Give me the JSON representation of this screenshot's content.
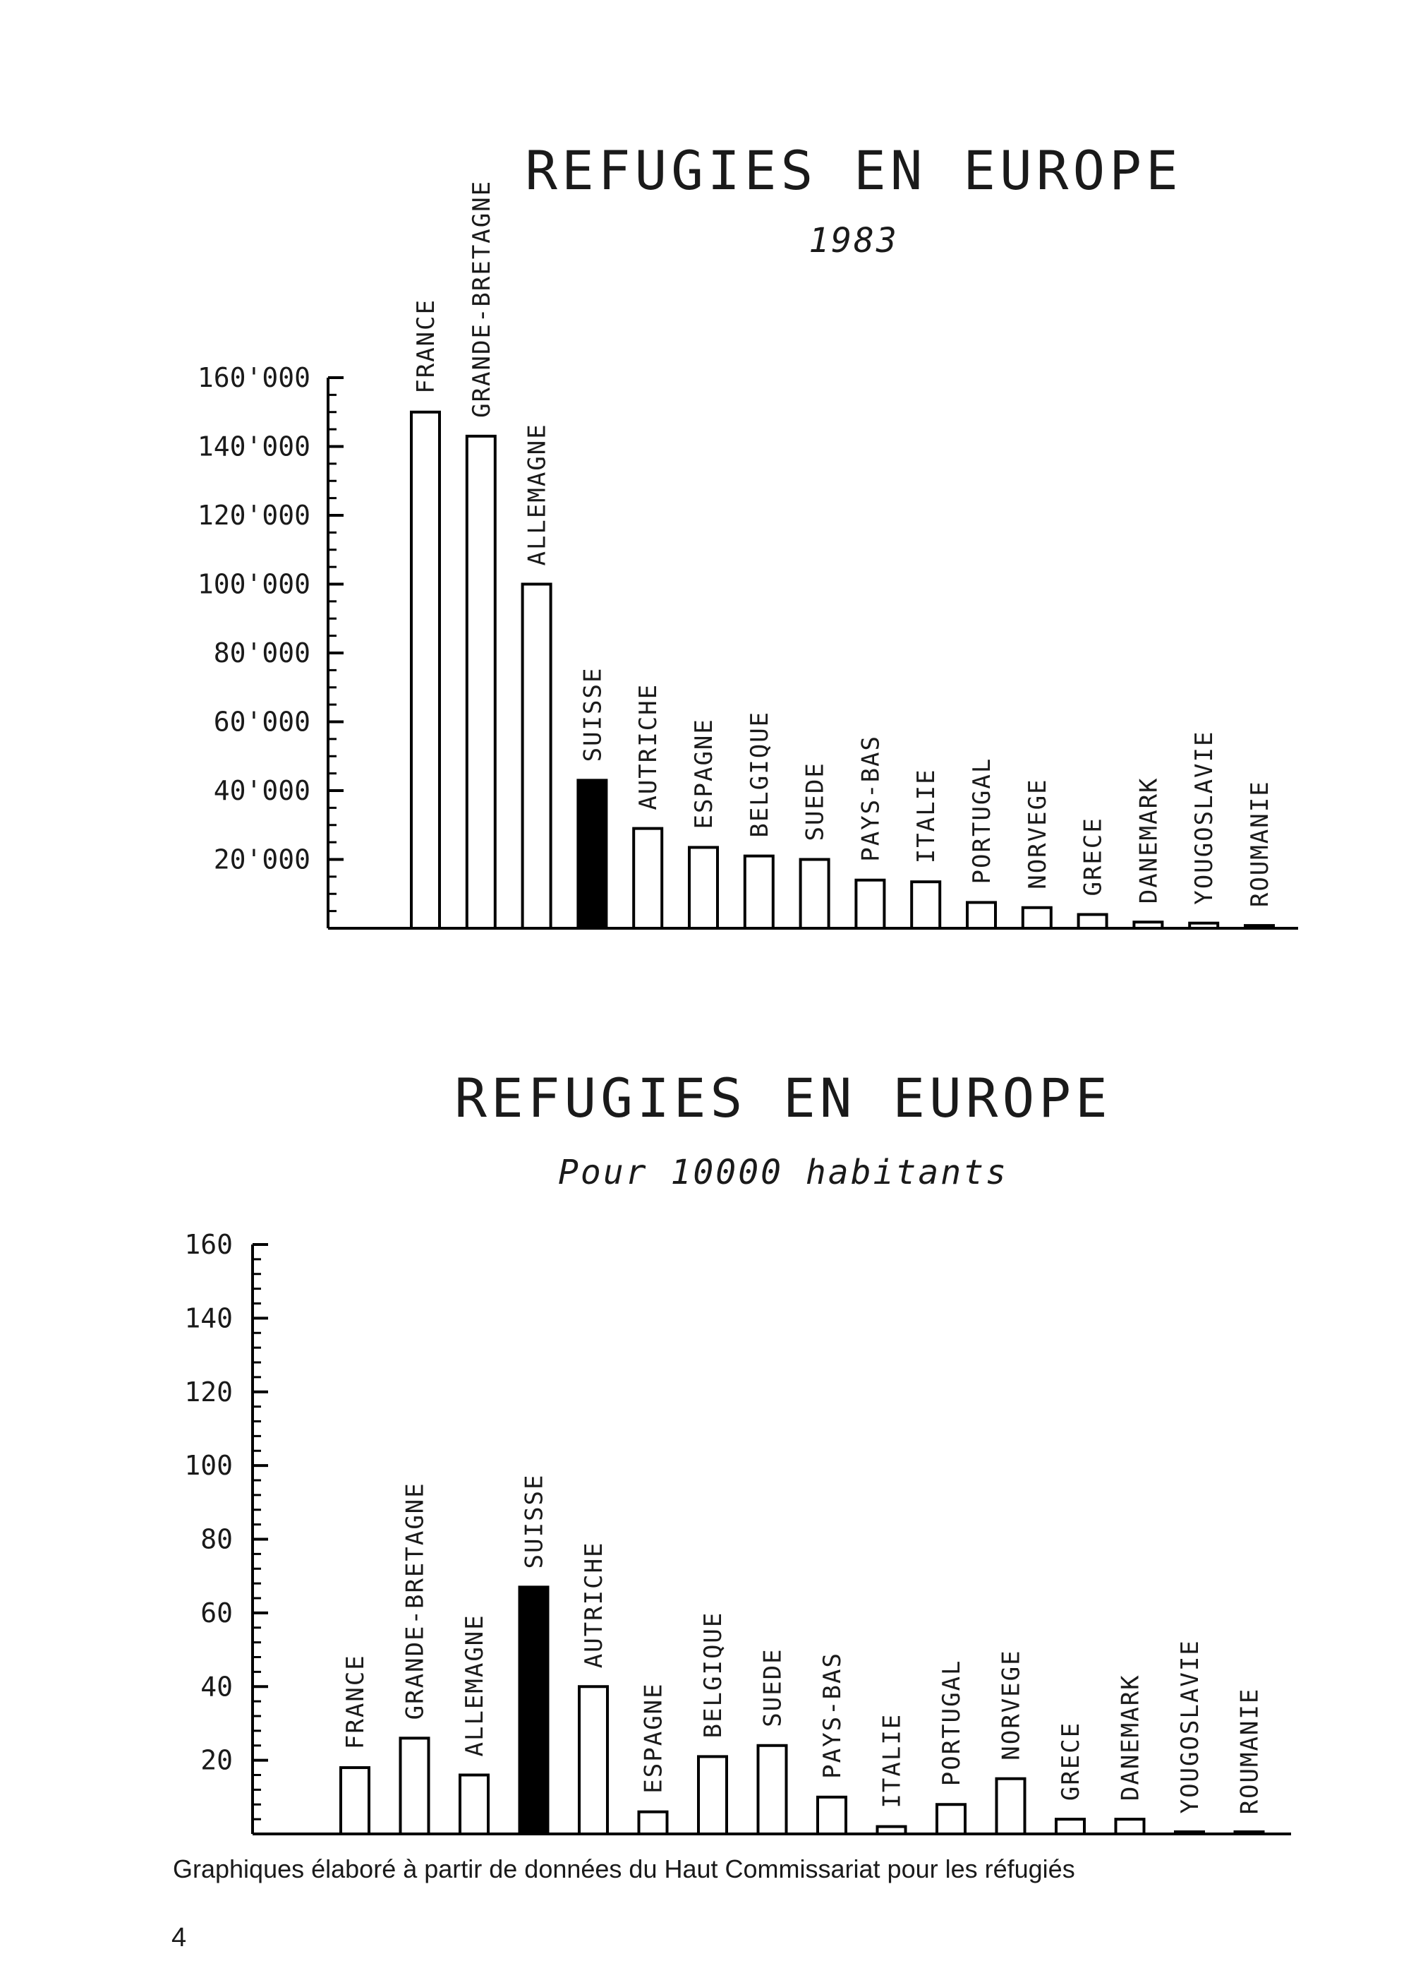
{
  "chart_data": [
    {
      "type": "bar",
      "title": "REFUGIES EN EUROPE",
      "subtitle": "1983",
      "xlabel": "",
      "ylabel": "",
      "ylim": [
        0,
        160000
      ],
      "yticks": [
        20000,
        40000,
        60000,
        80000,
        100000,
        120000,
        140000,
        160000
      ],
      "ytick_labels": [
        "20'000",
        "40'000",
        "60'000",
        "80'000",
        "100'000",
        "120'000",
        "140'000",
        "160'000"
      ],
      "grid": false,
      "categories": [
        "FRANCE",
        "GRANDE-BRETAGNE",
        "ALLEMAGNE",
        "SUISSE",
        "AUTRICHE",
        "ESPAGNE",
        "BELGIQUE",
        "SUEDE",
        "PAYS-BAS",
        "ITALIE",
        "PORTUGAL",
        "NORVEGE",
        "GRECE",
        "DANEMARK",
        "YOUGOSLAVIE",
        "ROUMANIE"
      ],
      "values": [
        150000,
        143000,
        100000,
        43000,
        29000,
        23500,
        21000,
        20000,
        14000,
        13500,
        7500,
        6000,
        4000,
        1800,
        1500,
        800
      ],
      "highlight": "SUISSE",
      "colors": {
        "bar_fill": "#ffffff",
        "highlight_fill": "#000000",
        "stroke": "#000000"
      }
    },
    {
      "type": "bar",
      "title": "REFUGIES EN EUROPE",
      "subtitle": "Pour 10000 habitants",
      "xlabel": "",
      "ylabel": "",
      "ylim": [
        0,
        160
      ],
      "yticks": [
        20,
        40,
        60,
        80,
        100,
        120,
        140,
        160
      ],
      "ytick_labels": [
        "20",
        "40",
        "60",
        "80",
        "100",
        "120",
        "140",
        "160"
      ],
      "grid": false,
      "categories": [
        "FRANCE",
        "GRANDE-BRETAGNE",
        "ALLEMAGNE",
        "SUISSE",
        "AUTRICHE",
        "ESPAGNE",
        "BELGIQUE",
        "SUEDE",
        "PAYS-BAS",
        "ITALIE",
        "PORTUGAL",
        "NORVEGE",
        "GRECE",
        "DANEMARK",
        "YOUGOSLAVIE",
        "ROUMANIE"
      ],
      "values": [
        18,
        26,
        16,
        67,
        40,
        6,
        21,
        24,
        10,
        2,
        8,
        15,
        4,
        4,
        0.5,
        0.3
      ],
      "highlight": "SUISSE",
      "colors": {
        "bar_fill": "#ffffff",
        "highlight_fill": "#000000",
        "stroke": "#000000"
      }
    }
  ],
  "caption": "Graphiques élaboré à partir de données du Haut Commissariat pour les réfugiés",
  "page_number": "4"
}
